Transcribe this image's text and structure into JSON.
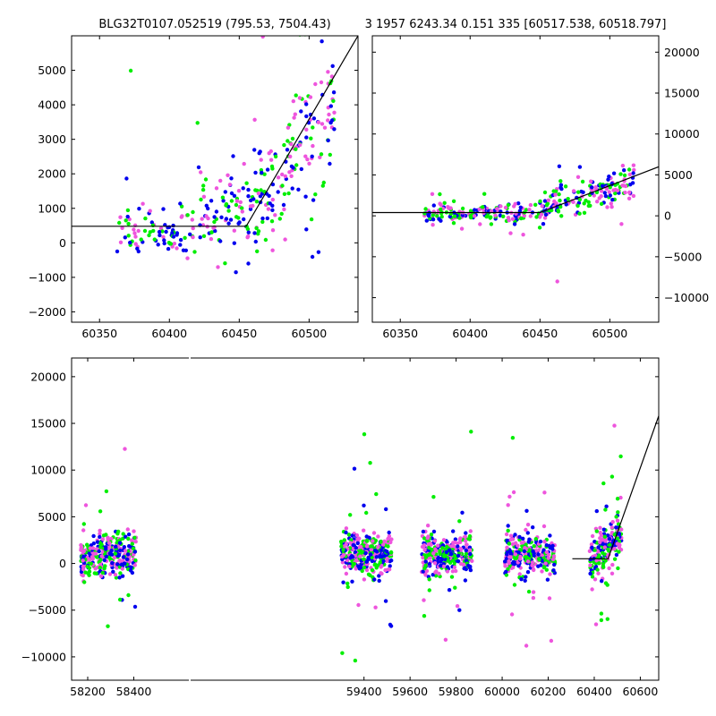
{
  "titles": {
    "left": "BLG32T0107.052519 (795.53, 7504.43)",
    "right": "3 1957 6243.34 0.151 335 [60517.538, 60518.797]"
  },
  "colors": {
    "green": "#00ee00",
    "blue": "#0000ee",
    "pink": "#ee55dd",
    "model": "#000000"
  },
  "chart_data": [
    {
      "name": "top-left",
      "type": "scatter",
      "xlim": [
        60330,
        60535
      ],
      "ylim": [
        -2300,
        6000
      ],
      "xticks": [
        60350,
        60400,
        60450,
        60500
      ],
      "yticks": [
        -2000,
        -1000,
        0,
        1000,
        2000,
        3000,
        4000,
        5000
      ],
      "ytick_side": "left",
      "model_line": [
        [
          60330,
          480
        ],
        [
          60455,
          480
        ],
        [
          60535,
          6000
        ]
      ],
      "seed": 11,
      "clusters": [
        {
          "x0": 60362,
          "x1": 60420,
          "ymid": 300,
          "yspread": 350,
          "n": 90,
          "slope": 0
        },
        {
          "x0": 60420,
          "x1": 60460,
          "ymid": 900,
          "yspread": 650,
          "n": 90,
          "slope": 0
        },
        {
          "x0": 60460,
          "x1": 60518,
          "ymid": 2600,
          "yspread": 900,
          "n": 170,
          "slope": 55
        }
      ]
    },
    {
      "name": "top-right",
      "type": "scatter",
      "xlim": [
        60330,
        60535
      ],
      "ylim": [
        -13000,
        22000
      ],
      "xticks": [
        60350,
        60400,
        60450,
        60500
      ],
      "yticks": [
        -10000,
        -5000,
        0,
        5000,
        10000,
        15000,
        20000
      ],
      "ytick_side": "right",
      "model_line": [
        [
          60330,
          400
        ],
        [
          60450,
          400
        ],
        [
          60535,
          6000
        ]
      ],
      "seed": 23,
      "clusters": [
        {
          "x0": 60367,
          "x1": 60450,
          "ymid": 250,
          "yspread": 500,
          "n": 160,
          "slope": 0
        },
        {
          "x0": 60450,
          "x1": 60518,
          "ymid": 2600,
          "yspread": 1100,
          "n": 170,
          "slope": 45
        }
      ]
    },
    {
      "name": "bottom",
      "type": "scatter",
      "xlim": [
        58130,
        60680
      ],
      "ylim": [
        -12500,
        22000
      ],
      "xticks": [
        58200,
        58400,
        59400,
        59600,
        59800,
        60000,
        60200,
        60400,
        60600
      ],
      "yticks": [
        -10000,
        -5000,
        0,
        5000,
        10000,
        15000,
        20000
      ],
      "ytick_side": "left",
      "model_line": [
        [
          60305,
          500
        ],
        [
          60460,
          500
        ],
        [
          60680,
          15800
        ]
      ],
      "seed": 37,
      "clusters": [
        {
          "x0": 58170,
          "x1": 58410,
          "ymid": 900,
          "yspread": 1100,
          "n": 330,
          "slope": 0
        },
        {
          "x0": 59300,
          "x1": 59520,
          "ymid": 900,
          "yspread": 1100,
          "n": 330,
          "slope": 0
        },
        {
          "x0": 59650,
          "x1": 59870,
          "ymid": 900,
          "yspread": 1100,
          "n": 300,
          "slope": 0
        },
        {
          "x0": 60010,
          "x1": 60230,
          "ymid": 800,
          "yspread": 1100,
          "n": 300,
          "slope": 0
        },
        {
          "x0": 60380,
          "x1": 60518,
          "ymid": 1500,
          "yspread": 1300,
          "n": 200,
          "slope": 25
        }
      ]
    }
  ]
}
